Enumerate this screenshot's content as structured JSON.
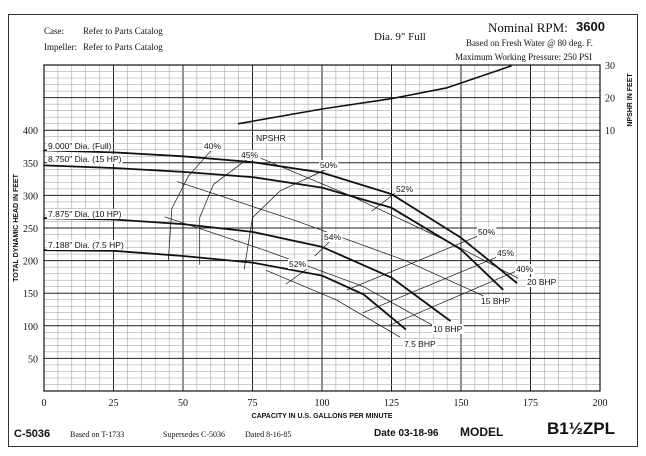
{
  "header": {
    "case_label": "Case:",
    "case_value": "Refer to Parts Catalog",
    "impeller_label": "Impeller:",
    "impeller_value": "Refer to Parts Catalog",
    "diameter": "Dia. 9\" Full",
    "rpm_label": "Nominal RPM:",
    "rpm_value": "3600",
    "basis": "Based on Fresh Water @ 80 deg. F.",
    "pressure": "Maximum Working Pressure: 250 PSI"
  },
  "footer": {
    "curve_no": "C-5036",
    "based_on": "Based on T-1733",
    "supersedes": "Supersedes C-5036",
    "dated": "Dated 8-16-85",
    "date": "Date 03-18-96",
    "model_label": "MODEL",
    "model_value": "B1½ZPL"
  },
  "chart_data": {
    "type": "line",
    "xlabel": "CAPACITY IN U.S. GALLONS PER MINUTE",
    "ylabel": "TOTAL  DYNAMIC HEAD IN FEET",
    "y2label": "NPSHR IN FEET",
    "xlim": [
      0,
      200
    ],
    "ylim": [
      0,
      500
    ],
    "y2lim": [
      0,
      30
    ],
    "grid": true,
    "x_ticks": [
      "0",
      "25",
      "50",
      "75",
      "100",
      "125",
      "150",
      "175",
      "200"
    ],
    "y_ticks": [
      "50",
      "100",
      "150",
      "200",
      "250",
      "300",
      "350",
      "400"
    ],
    "y2_ticks": [
      "10",
      "20",
      "30"
    ],
    "head_curves": [
      {
        "name": "9.000\" Dia. (Full)",
        "points": [
          [
            0,
            369
          ],
          [
            25,
            366
          ],
          [
            50,
            360
          ],
          [
            75,
            351
          ],
          [
            100,
            335
          ],
          [
            125,
            302
          ],
          [
            150,
            235
          ],
          [
            170,
            166
          ]
        ]
      },
      {
        "name": "8.750\" Dia. (15 HP)",
        "points": [
          [
            0,
            346
          ],
          [
            25,
            342
          ],
          [
            50,
            336
          ],
          [
            75,
            328
          ],
          [
            100,
            312
          ],
          [
            125,
            281
          ],
          [
            150,
            217
          ],
          [
            165,
            156
          ]
        ]
      },
      {
        "name": "7.875\" Dia. (10 HP)",
        "points": [
          [
            0,
            265
          ],
          [
            25,
            263
          ],
          [
            50,
            256
          ],
          [
            75,
            244
          ],
          [
            100,
            221
          ],
          [
            125,
            174
          ],
          [
            146,
            108
          ]
        ]
      },
      {
        "name": "7.188\" Dia. (7.5 HP)",
        "points": [
          [
            0,
            216
          ],
          [
            25,
            215
          ],
          [
            50,
            207
          ],
          [
            75,
            197
          ],
          [
            100,
            177
          ],
          [
            115,
            148
          ],
          [
            130,
            95
          ]
        ]
      }
    ],
    "npshr": {
      "name": "NPSHR",
      "points": [
        [
          70,
          12
        ],
        [
          100,
          16.5
        ],
        [
          125,
          19.7
        ],
        [
          145,
          23
        ],
        [
          168,
          29.7
        ]
      ]
    },
    "efficiency_lines": [
      {
        "name": "40%",
        "points": [
          [
            61,
            373
          ],
          [
            52,
            330
          ],
          [
            46,
            280
          ],
          [
            44.7,
            200
          ]
        ]
      },
      {
        "name": "45%",
        "points": [
          [
            74.5,
            360
          ],
          [
            61,
            317
          ],
          [
            56,
            266
          ],
          [
            56,
            194
          ]
        ]
      },
      {
        "name": "50%",
        "points": [
          [
            102.6,
            342
          ],
          [
            85,
            307
          ],
          [
            75,
            266
          ],
          [
            72,
            187
          ]
        ]
      },
      {
        "name": "52%",
        "points": [
          [
            128,
            309
          ],
          [
            118,
            276
          ]
        ]
      },
      {
        "name": "54%",
        "points": [
          [
            103,
            230
          ],
          [
            97.4,
            207
          ]
        ]
      },
      {
        "name": "52%",
        "points": [
          [
            94.5,
            187
          ],
          [
            87,
            164
          ]
        ]
      },
      {
        "name": "50%",
        "points": [
          [
            109,
            155
          ],
          [
            158.6,
            242
          ]
        ]
      },
      {
        "name": "45%",
        "points": [
          [
            114.7,
            120
          ],
          [
            165,
            209
          ]
        ]
      },
      {
        "name": "40%",
        "points": [
          [
            124.5,
            101
          ],
          [
            171,
            186
          ]
        ]
      }
    ],
    "bhp_lines": [
      {
        "name": "20 BHP",
        "points": [
          [
            78,
            357
          ],
          [
            110,
            300
          ],
          [
            145,
            230
          ],
          [
            170.5,
            173
          ]
        ]
      },
      {
        "name": "15 BHP",
        "points": [
          [
            48,
            321
          ],
          [
            90,
            262
          ],
          [
            130,
            200
          ],
          [
            158,
            146
          ]
        ]
      },
      {
        "name": "10 BHP",
        "points": [
          [
            43.5,
            267
          ],
          [
            80,
            215
          ],
          [
            115,
            160
          ],
          [
            139.6,
            101
          ]
        ]
      },
      {
        "name": "7.5 BHP",
        "points": [
          [
            80,
            185
          ],
          [
            105,
            140
          ],
          [
            128,
            83
          ]
        ]
      }
    ]
  }
}
